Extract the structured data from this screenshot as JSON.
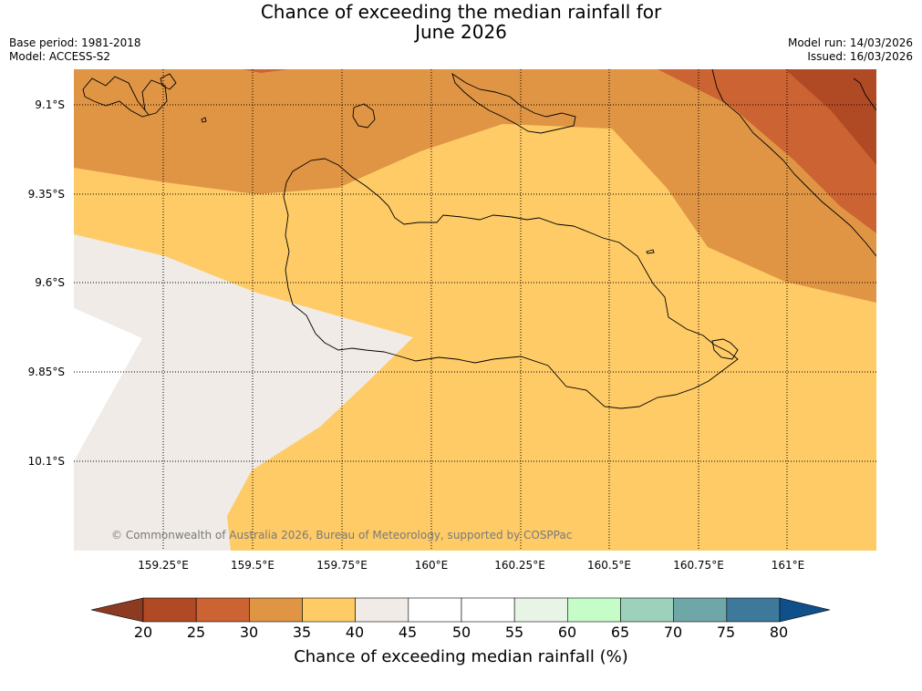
{
  "title": {
    "line1": "Chance of exceeding the median rainfall for",
    "line2": "June 2026"
  },
  "meta_left": {
    "base_period": "Base period: 1981-2018",
    "model": "Model: ACCESS-S2"
  },
  "meta_right": {
    "model_run": "Model run: 14/03/2026",
    "issued": "Issued: 16/03/2026"
  },
  "axes": {
    "lat_labels": [
      "9.1°S",
      "9.35°S",
      "9.6°S",
      "9.85°S",
      "10.1°S"
    ],
    "lon_labels": [
      "159.25°E",
      "159.5°E",
      "159.75°E",
      "160°E",
      "160.25°E",
      "160.5°E",
      "160.75°E",
      "161°E"
    ]
  },
  "copyright": "© Commonwealth of Australia 2026, Bureau of Meteorology, supported by COSPPac",
  "colorbar": {
    "title": "Chance of exceeding median rainfall (%)",
    "ticks": [
      "20",
      "25",
      "30",
      "35",
      "40",
      "45",
      "50",
      "55",
      "60",
      "65",
      "70",
      "75",
      "80"
    ],
    "under_color": "#8c3a22",
    "over_color": "#0f4f8a",
    "colors": [
      "#b04a25",
      "#cc6332",
      "#e09545",
      "#fecb66",
      "#f0ebe6",
      "#ffffff",
      "#ffffff",
      "#e8f5e6",
      "#c6fcc8",
      "#9dd1bc",
      "#6fa7a8",
      "#3e789a"
    ]
  },
  "palette": {
    "p20_25": "#b04a25",
    "p25_30": "#cc6332",
    "p30_35": "#e09545",
    "p35_40": "#fecb66",
    "p40_45": "#f0ebe6",
    "p45_50": "#ffffff"
  }
}
